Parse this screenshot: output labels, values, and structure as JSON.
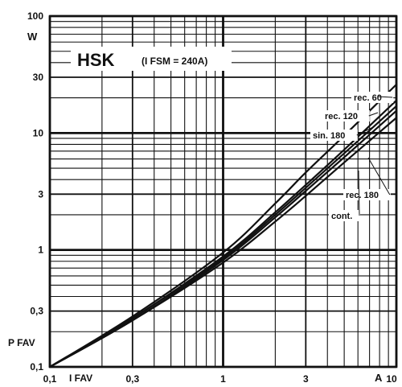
{
  "chart_data": {
    "type": "line",
    "title": "HSK",
    "subtitle": "(I FSM = 240A)",
    "xlabel": "I FAV",
    "ylabel": "P FAV",
    "x_unit": "A",
    "y_unit": "W",
    "x_scale": "log",
    "y_scale": "log",
    "xlim": [
      0.1,
      10
    ],
    "ylim": [
      0.1,
      100
    ],
    "grid": true,
    "x_ticks": [
      "0,1",
      "0,3",
      "1",
      "3",
      "10"
    ],
    "y_ticks": [
      "0,1",
      "0,3",
      "1",
      "3",
      "10",
      "30",
      "100"
    ],
    "series": [
      {
        "name": "rec. 60",
        "x": [
          0.1,
          0.3,
          1,
          2,
          3,
          5,
          10
        ],
        "y": [
          0.1,
          0.27,
          0.95,
          2.5,
          4.6,
          9.5,
          26
        ]
      },
      {
        "name": "rec. 120",
        "x": [
          0.1,
          0.3,
          1,
          2,
          3,
          5,
          10
        ],
        "y": [
          0.1,
          0.26,
          0.88,
          2.1,
          3.6,
          7.2,
          19
        ]
      },
      {
        "name": "sin. 180",
        "x": [
          0.1,
          0.3,
          1,
          2,
          3,
          5,
          10
        ],
        "y": [
          0.1,
          0.26,
          0.85,
          2.0,
          3.4,
          6.7,
          17
        ]
      },
      {
        "name": "rec. 180",
        "x": [
          0.1,
          0.3,
          1,
          2,
          3,
          5,
          10
        ],
        "y": [
          0.1,
          0.25,
          0.82,
          1.9,
          3.2,
          6.2,
          15.5
        ]
      },
      {
        "name": "cont.",
        "x": [
          0.1,
          0.3,
          1,
          2,
          3,
          5,
          10
        ],
        "y": [
          0.1,
          0.25,
          0.78,
          1.75,
          2.9,
          5.6,
          13.5
        ]
      }
    ]
  }
}
